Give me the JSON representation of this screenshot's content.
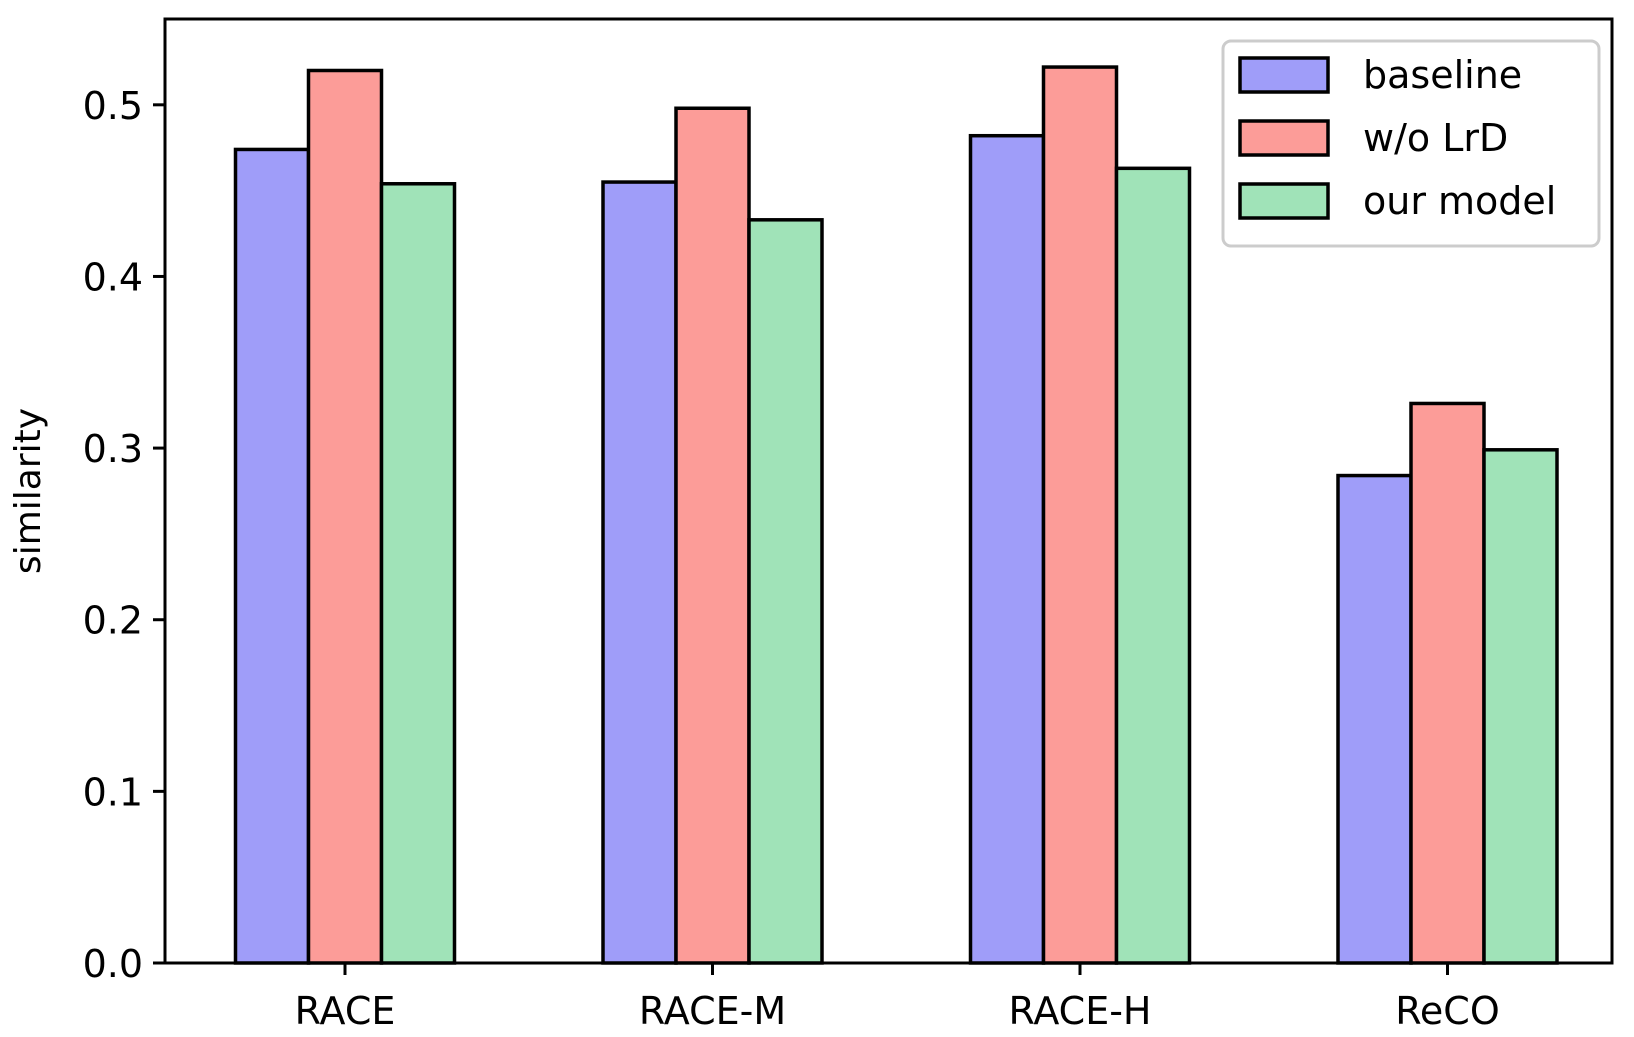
{
  "chart_data": {
    "type": "bar",
    "title": "",
    "xlabel": "",
    "ylabel": "similarity",
    "ylim": [
      0,
      0.55
    ],
    "yticks": [
      0.0,
      0.1,
      0.2,
      0.3,
      0.4,
      0.5
    ],
    "ytick_labels": [
      "0.0",
      "0.1",
      "0.2",
      "0.3",
      "0.4",
      "0.5"
    ],
    "grid": false,
    "legend_position": "top-right",
    "categories": [
      "RACE",
      "RACE-M",
      "RACE-H",
      "ReCO"
    ],
    "series": [
      {
        "name": "baseline",
        "color": "#9f9df9",
        "values": [
          0.474,
          0.455,
          0.482,
          0.284
        ]
      },
      {
        "name": "w/o LrD",
        "color": "#fc9c98",
        "values": [
          0.52,
          0.498,
          0.522,
          0.326
        ]
      },
      {
        "name": "our model",
        "color": "#a0e3b8",
        "values": [
          0.454,
          0.433,
          0.463,
          0.299
        ]
      }
    ]
  }
}
